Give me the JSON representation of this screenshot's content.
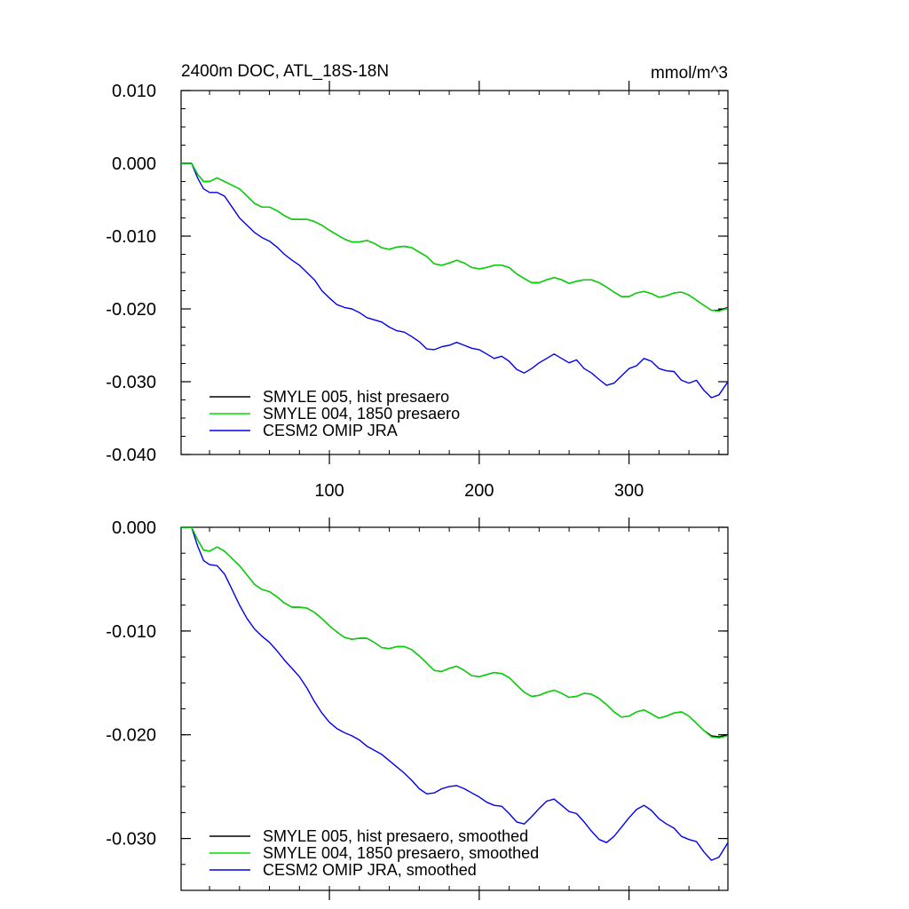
{
  "chart_data": [
    {
      "type": "line",
      "title_left": "2400m DOC, ATL_18S-18N",
      "title_right": "mmol/m^3",
      "xlabel": "",
      "ylabel": "",
      "xlim": [
        1,
        366
      ],
      "ylim": [
        -0.04,
        0.01
      ],
      "x_ticks": [
        100,
        200,
        300
      ],
      "x_tick_labels": [
        "100",
        "200",
        "300"
      ],
      "y_ticks": [
        0.01,
        0.0,
        -0.01,
        -0.02,
        -0.03,
        -0.04
      ],
      "y_tick_labels": [
        "0.010",
        "0.000",
        "-0.010",
        "-0.020",
        "-0.030",
        "-0.040"
      ],
      "grid": false,
      "legend_position": "bottom-left",
      "series": [
        {
          "name": "SMYLE 005, hist presaero",
          "color": "#000000",
          "x": [
            1,
            5,
            8,
            12,
            16,
            20,
            25,
            30,
            35,
            40,
            45,
            50,
            55,
            60,
            65,
            70,
            75,
            80,
            85,
            90,
            95,
            100,
            105,
            110,
            115,
            120,
            125,
            130,
            135,
            140,
            145,
            150,
            155,
            160,
            165,
            170,
            175,
            180,
            185,
            190,
            195,
            200,
            205,
            210,
            215,
            220,
            225,
            230,
            235,
            240,
            245,
            250,
            255,
            260,
            265,
            270,
            275,
            280,
            285,
            290,
            295,
            300,
            305,
            310,
            315,
            320,
            325,
            330,
            335,
            340,
            345,
            350,
            355,
            360,
            366
          ],
          "values": [
            0.0,
            0.0,
            0.0,
            -0.0015,
            -0.0025,
            -0.0025,
            -0.002,
            -0.0025,
            -0.003,
            -0.0035,
            -0.0045,
            -0.0055,
            -0.006,
            -0.006,
            -0.0065,
            -0.0072,
            -0.0077,
            -0.0077,
            -0.0077,
            -0.008,
            -0.0085,
            -0.0092,
            -0.0098,
            -0.0104,
            -0.0108,
            -0.0108,
            -0.0106,
            -0.011,
            -0.0116,
            -0.0118,
            -0.0115,
            -0.0114,
            -0.0116,
            -0.0122,
            -0.0128,
            -0.0138,
            -0.014,
            -0.0137,
            -0.0133,
            -0.0137,
            -0.0143,
            -0.0145,
            -0.0143,
            -0.014,
            -0.014,
            -0.0143,
            -0.0152,
            -0.0158,
            -0.0164,
            -0.0164,
            -0.016,
            -0.0157,
            -0.016,
            -0.0165,
            -0.0162,
            -0.016,
            -0.016,
            -0.0164,
            -0.017,
            -0.0177,
            -0.0183,
            -0.0183,
            -0.0178,
            -0.0176,
            -0.0179,
            -0.0184,
            -0.0182,
            -0.0178,
            -0.0177,
            -0.0181,
            -0.0188,
            -0.0195,
            -0.0202,
            -0.0202,
            -0.0198
          ]
        },
        {
          "name": "SMYLE 004, 1850 presaero",
          "color": "#00dd00",
          "x": [
            1,
            5,
            8,
            12,
            16,
            20,
            25,
            30,
            35,
            40,
            45,
            50,
            55,
            60,
            65,
            70,
            75,
            80,
            85,
            90,
            95,
            100,
            105,
            110,
            115,
            120,
            125,
            130,
            135,
            140,
            145,
            150,
            155,
            160,
            165,
            170,
            175,
            180,
            185,
            190,
            195,
            200,
            205,
            210,
            215,
            220,
            225,
            230,
            235,
            240,
            245,
            250,
            255,
            260,
            265,
            270,
            275,
            280,
            285,
            290,
            295,
            300,
            305,
            310,
            315,
            320,
            325,
            330,
            335,
            340,
            345,
            350,
            355,
            360,
            366
          ],
          "values": [
            0.0,
            0.0,
            0.0,
            -0.0015,
            -0.0025,
            -0.0025,
            -0.002,
            -0.0025,
            -0.003,
            -0.0035,
            -0.0045,
            -0.0055,
            -0.006,
            -0.006,
            -0.0065,
            -0.0072,
            -0.0077,
            -0.0077,
            -0.0077,
            -0.008,
            -0.0085,
            -0.0092,
            -0.0098,
            -0.0104,
            -0.0108,
            -0.0108,
            -0.0106,
            -0.011,
            -0.0116,
            -0.0118,
            -0.0115,
            -0.0114,
            -0.0116,
            -0.0122,
            -0.0128,
            -0.0138,
            -0.014,
            -0.0137,
            -0.0133,
            -0.0137,
            -0.0143,
            -0.0145,
            -0.0143,
            -0.014,
            -0.014,
            -0.0143,
            -0.0152,
            -0.0158,
            -0.0164,
            -0.0164,
            -0.016,
            -0.0157,
            -0.016,
            -0.0165,
            -0.0162,
            -0.016,
            -0.016,
            -0.0164,
            -0.017,
            -0.0177,
            -0.0183,
            -0.0183,
            -0.0178,
            -0.0176,
            -0.0179,
            -0.0184,
            -0.0182,
            -0.0178,
            -0.0177,
            -0.0181,
            -0.0188,
            -0.0195,
            -0.0202,
            -0.0203,
            -0.0199
          ]
        },
        {
          "name": "CESM2 OMIP JRA",
          "color": "#0000ee",
          "x": [
            1,
            5,
            8,
            12,
            16,
            20,
            25,
            30,
            35,
            40,
            45,
            50,
            55,
            60,
            65,
            70,
            75,
            80,
            85,
            90,
            95,
            100,
            105,
            110,
            115,
            120,
            125,
            130,
            135,
            140,
            145,
            150,
            155,
            160,
            165,
            170,
            175,
            180,
            185,
            190,
            195,
            200,
            205,
            210,
            215,
            220,
            225,
            230,
            235,
            240,
            245,
            250,
            255,
            260,
            265,
            270,
            275,
            280,
            285,
            290,
            295,
            300,
            305,
            310,
            315,
            320,
            325,
            330,
            335,
            340,
            345,
            350,
            355,
            360,
            366
          ],
          "values": [
            0.0,
            0.0,
            0.0,
            -0.002,
            -0.0035,
            -0.004,
            -0.004,
            -0.0045,
            -0.006,
            -0.0075,
            -0.0085,
            -0.0095,
            -0.0102,
            -0.0107,
            -0.0115,
            -0.0125,
            -0.0133,
            -0.014,
            -0.015,
            -0.016,
            -0.0175,
            -0.0185,
            -0.0194,
            -0.0198,
            -0.02,
            -0.0205,
            -0.0212,
            -0.0215,
            -0.0218,
            -0.0225,
            -0.023,
            -0.0232,
            -0.0238,
            -0.0245,
            -0.0255,
            -0.0256,
            -0.0252,
            -0.025,
            -0.0246,
            -0.025,
            -0.0254,
            -0.0256,
            -0.0262,
            -0.0268,
            -0.0265,
            -0.0272,
            -0.0283,
            -0.0288,
            -0.0282,
            -0.0274,
            -0.0268,
            -0.0262,
            -0.0268,
            -0.0274,
            -0.027,
            -0.0282,
            -0.0288,
            -0.0297,
            -0.0305,
            -0.0302,
            -0.0292,
            -0.0282,
            -0.0278,
            -0.0268,
            -0.0272,
            -0.0282,
            -0.0285,
            -0.0286,
            -0.0298,
            -0.0302,
            -0.0298,
            -0.0312,
            -0.0322,
            -0.0318,
            -0.03
          ]
        }
      ]
    },
    {
      "type": "line",
      "xlabel": "",
      "ylabel": "",
      "xlim": [
        1,
        366
      ],
      "ylim": [
        -0.035,
        0.0
      ],
      "x_ticks": [
        100,
        200,
        300
      ],
      "x_tick_labels": [],
      "y_ticks": [
        0.0,
        -0.01,
        -0.02,
        -0.03
      ],
      "y_tick_labels": [
        "0.000",
        "-0.010",
        "-0.020",
        "-0.030"
      ],
      "grid": false,
      "legend_position": "bottom-left",
      "series": [
        {
          "name": "SMYLE 005, hist presaero, smoothed",
          "color": "#000000",
          "x": [
            1,
            5,
            8,
            12,
            16,
            20,
            25,
            30,
            35,
            40,
            45,
            50,
            55,
            60,
            65,
            70,
            75,
            80,
            85,
            90,
            95,
            100,
            105,
            110,
            115,
            120,
            125,
            130,
            135,
            140,
            145,
            150,
            155,
            160,
            165,
            170,
            175,
            180,
            185,
            190,
            195,
            200,
            205,
            210,
            215,
            220,
            225,
            230,
            235,
            240,
            245,
            250,
            255,
            260,
            265,
            270,
            275,
            280,
            285,
            290,
            295,
            300,
            305,
            310,
            315,
            320,
            325,
            330,
            335,
            340,
            345,
            350,
            355,
            360,
            366
          ],
          "values": [
            0.0,
            0.0,
            0.0,
            -0.0012,
            -0.0022,
            -0.0023,
            -0.0019,
            -0.0023,
            -0.003,
            -0.0037,
            -0.0046,
            -0.0055,
            -0.006,
            -0.0062,
            -0.0067,
            -0.0073,
            -0.0077,
            -0.0077,
            -0.0078,
            -0.0082,
            -0.0088,
            -0.0095,
            -0.0101,
            -0.0106,
            -0.0108,
            -0.0107,
            -0.0107,
            -0.0111,
            -0.0116,
            -0.0117,
            -0.0115,
            -0.0115,
            -0.0118,
            -0.0124,
            -0.0131,
            -0.0138,
            -0.0139,
            -0.0136,
            -0.0134,
            -0.0138,
            -0.0143,
            -0.0144,
            -0.0142,
            -0.014,
            -0.0141,
            -0.0145,
            -0.0152,
            -0.0159,
            -0.0163,
            -0.0162,
            -0.0159,
            -0.0157,
            -0.016,
            -0.0164,
            -0.0163,
            -0.016,
            -0.0161,
            -0.0165,
            -0.0171,
            -0.0178,
            -0.0183,
            -0.0182,
            -0.0178,
            -0.0176,
            -0.018,
            -0.0184,
            -0.0182,
            -0.0179,
            -0.0178,
            -0.0182,
            -0.0189,
            -0.0196,
            -0.0201,
            -0.0202,
            -0.02
          ]
        },
        {
          "name": "SMYLE 004, 1850 presaero, smoothed",
          "color": "#00dd00",
          "x": [
            1,
            5,
            8,
            12,
            16,
            20,
            25,
            30,
            35,
            40,
            45,
            50,
            55,
            60,
            65,
            70,
            75,
            80,
            85,
            90,
            95,
            100,
            105,
            110,
            115,
            120,
            125,
            130,
            135,
            140,
            145,
            150,
            155,
            160,
            165,
            170,
            175,
            180,
            185,
            190,
            195,
            200,
            205,
            210,
            215,
            220,
            225,
            230,
            235,
            240,
            245,
            250,
            255,
            260,
            265,
            270,
            275,
            280,
            285,
            290,
            295,
            300,
            305,
            310,
            315,
            320,
            325,
            330,
            335,
            340,
            345,
            350,
            355,
            360,
            366
          ],
          "values": [
            0.0,
            0.0,
            0.0,
            -0.0012,
            -0.0022,
            -0.0023,
            -0.0019,
            -0.0023,
            -0.003,
            -0.0037,
            -0.0046,
            -0.0055,
            -0.006,
            -0.0062,
            -0.0067,
            -0.0073,
            -0.0077,
            -0.0077,
            -0.0078,
            -0.0082,
            -0.0088,
            -0.0095,
            -0.0101,
            -0.0106,
            -0.0108,
            -0.0107,
            -0.0107,
            -0.0111,
            -0.0116,
            -0.0117,
            -0.0115,
            -0.0115,
            -0.0118,
            -0.0124,
            -0.0131,
            -0.0138,
            -0.0139,
            -0.0136,
            -0.0134,
            -0.0138,
            -0.0143,
            -0.0144,
            -0.0142,
            -0.014,
            -0.0141,
            -0.0145,
            -0.0152,
            -0.0159,
            -0.0163,
            -0.0162,
            -0.0159,
            -0.0157,
            -0.016,
            -0.0164,
            -0.0163,
            -0.016,
            -0.0161,
            -0.0165,
            -0.0171,
            -0.0178,
            -0.0183,
            -0.0182,
            -0.0178,
            -0.0176,
            -0.018,
            -0.0184,
            -0.0182,
            -0.0179,
            -0.0178,
            -0.0182,
            -0.0189,
            -0.0196,
            -0.0202,
            -0.0203,
            -0.0201
          ]
        },
        {
          "name": "CESM2 OMIP JRA, smoothed",
          "color": "#0000ee",
          "x": [
            1,
            5,
            8,
            12,
            16,
            20,
            25,
            30,
            35,
            40,
            45,
            50,
            55,
            60,
            65,
            70,
            75,
            80,
            85,
            90,
            95,
            100,
            105,
            110,
            115,
            120,
            125,
            130,
            135,
            140,
            145,
            150,
            155,
            160,
            165,
            170,
            175,
            180,
            185,
            190,
            195,
            200,
            205,
            210,
            215,
            220,
            225,
            230,
            235,
            240,
            245,
            250,
            255,
            260,
            265,
            270,
            275,
            280,
            285,
            290,
            295,
            300,
            305,
            310,
            315,
            320,
            325,
            330,
            335,
            340,
            345,
            350,
            355,
            360,
            366
          ],
          "values": [
            0.0,
            0.0,
            0.0,
            -0.0018,
            -0.0032,
            -0.0036,
            -0.0037,
            -0.0045,
            -0.006,
            -0.0075,
            -0.0088,
            -0.0098,
            -0.0105,
            -0.0111,
            -0.0119,
            -0.0128,
            -0.0136,
            -0.0144,
            -0.0155,
            -0.0168,
            -0.0179,
            -0.0188,
            -0.0194,
            -0.0198,
            -0.0201,
            -0.0205,
            -0.0211,
            -0.0215,
            -0.0219,
            -0.0225,
            -0.0231,
            -0.0237,
            -0.0244,
            -0.0252,
            -0.0257,
            -0.0256,
            -0.0252,
            -0.025,
            -0.0249,
            -0.0252,
            -0.0256,
            -0.026,
            -0.0265,
            -0.0268,
            -0.0269,
            -0.0276,
            -0.0284,
            -0.0286,
            -0.0279,
            -0.0271,
            -0.0264,
            -0.0262,
            -0.0268,
            -0.0274,
            -0.0276,
            -0.0284,
            -0.0293,
            -0.0301,
            -0.0304,
            -0.0298,
            -0.0289,
            -0.028,
            -0.0272,
            -0.0268,
            -0.0273,
            -0.0281,
            -0.0286,
            -0.029,
            -0.0298,
            -0.0301,
            -0.0303,
            -0.0313,
            -0.0321,
            -0.0318,
            -0.0304
          ]
        }
      ]
    }
  ]
}
